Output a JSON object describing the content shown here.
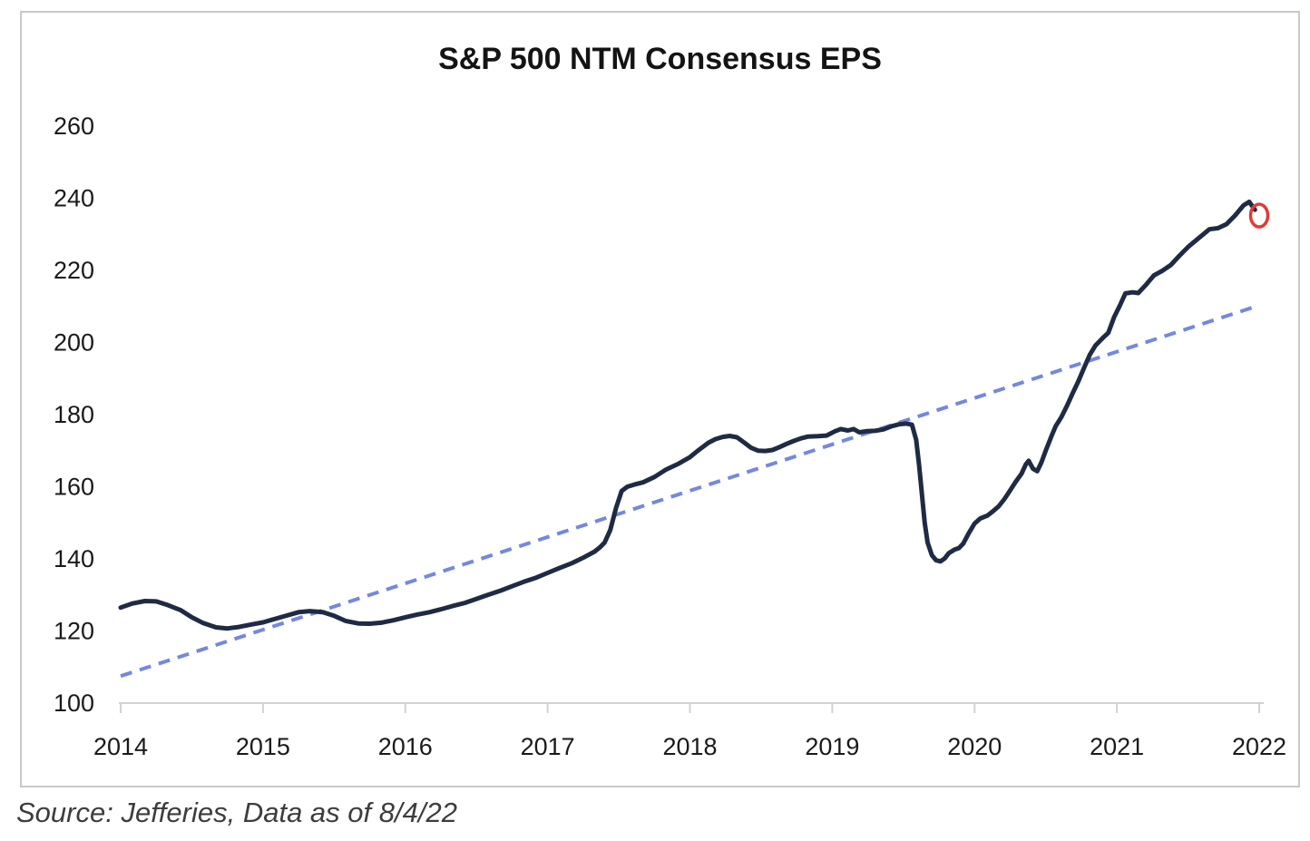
{
  "page": {
    "source_note": "Source: Jefferies, Data as of 8/4/22"
  },
  "colors": {
    "eps_line": "#1f2a44",
    "trend_line": "#7488dd",
    "annotation_circle": "#e03b33",
    "axis_line": "#d2d2d2",
    "tick_label": "#1a1a1a",
    "frame_border": "#c9c9c9",
    "source_text": "#3d3d3d",
    "title_text": "#141414"
  },
  "chart_data": {
    "type": "line",
    "title": "S&P 500 NTM Consensus EPS",
    "xlabel": "",
    "ylabel": "",
    "grid": false,
    "legend_position": "none",
    "xlim": [
      2014,
      2022
    ],
    "ylim": [
      100,
      260
    ],
    "x_ticks": [
      2014,
      2015,
      2016,
      2017,
      2018,
      2019,
      2020,
      2021,
      2022
    ],
    "y_ticks": [
      100,
      120,
      140,
      160,
      180,
      200,
      220,
      240,
      260
    ],
    "series": [
      {
        "name": "S&P 500 NTM consensus EPS",
        "style": "solid",
        "color_key": "eps_line",
        "points": [
          [
            2014.0,
            126.5
          ],
          [
            2014.08,
            127.6
          ],
          [
            2014.17,
            128.3
          ],
          [
            2014.25,
            128.2
          ],
          [
            2014.33,
            127.2
          ],
          [
            2014.42,
            125.8
          ],
          [
            2014.5,
            123.8
          ],
          [
            2014.58,
            122.2
          ],
          [
            2014.67,
            121.0
          ],
          [
            2014.75,
            120.7
          ],
          [
            2014.83,
            121.1
          ],
          [
            2014.92,
            121.8
          ],
          [
            2015.0,
            122.4
          ],
          [
            2015.08,
            123.3
          ],
          [
            2015.17,
            124.3
          ],
          [
            2015.25,
            125.2
          ],
          [
            2015.33,
            125.5
          ],
          [
            2015.42,
            125.2
          ],
          [
            2015.5,
            124.2
          ],
          [
            2015.58,
            122.8
          ],
          [
            2015.67,
            122.1
          ],
          [
            2015.75,
            122.0
          ],
          [
            2015.83,
            122.3
          ],
          [
            2015.92,
            123.0
          ],
          [
            2016.0,
            123.8
          ],
          [
            2016.08,
            124.5
          ],
          [
            2016.17,
            125.2
          ],
          [
            2016.25,
            126.0
          ],
          [
            2016.33,
            126.9
          ],
          [
            2016.42,
            127.8
          ],
          [
            2016.5,
            128.9
          ],
          [
            2016.58,
            130.0
          ],
          [
            2016.67,
            131.2
          ],
          [
            2016.75,
            132.4
          ],
          [
            2016.83,
            133.6
          ],
          [
            2016.92,
            134.8
          ],
          [
            2017.0,
            136.1
          ],
          [
            2017.08,
            137.4
          ],
          [
            2017.17,
            138.8
          ],
          [
            2017.25,
            140.3
          ],
          [
            2017.33,
            142.0
          ],
          [
            2017.37,
            143.3
          ],
          [
            2017.4,
            144.5
          ],
          [
            2017.44,
            148.0
          ],
          [
            2017.48,
            154.0
          ],
          [
            2017.52,
            158.8
          ],
          [
            2017.56,
            160.0
          ],
          [
            2017.61,
            160.6
          ],
          [
            2017.67,
            161.2
          ],
          [
            2017.75,
            162.7
          ],
          [
            2017.83,
            164.7
          ],
          [
            2017.92,
            166.4
          ],
          [
            2018.0,
            168.2
          ],
          [
            2018.05,
            169.8
          ],
          [
            2018.09,
            171.0
          ],
          [
            2018.13,
            172.2
          ],
          [
            2018.18,
            173.2
          ],
          [
            2018.23,
            173.8
          ],
          [
            2018.28,
            174.1
          ],
          [
            2018.33,
            173.7
          ],
          [
            2018.38,
            172.3
          ],
          [
            2018.43,
            170.8
          ],
          [
            2018.48,
            170.0
          ],
          [
            2018.53,
            169.9
          ],
          [
            2018.58,
            170.2
          ],
          [
            2018.63,
            171.0
          ],
          [
            2018.68,
            171.9
          ],
          [
            2018.73,
            172.7
          ],
          [
            2018.78,
            173.4
          ],
          [
            2018.83,
            173.9
          ],
          [
            2018.9,
            174.0
          ],
          [
            2018.96,
            174.2
          ],
          [
            2019.02,
            175.4
          ],
          [
            2019.06,
            176.0
          ],
          [
            2019.11,
            175.6
          ],
          [
            2019.15,
            176.0
          ],
          [
            2019.19,
            175.1
          ],
          [
            2019.24,
            175.4
          ],
          [
            2019.3,
            175.5
          ],
          [
            2019.36,
            175.9
          ],
          [
            2019.42,
            176.8
          ],
          [
            2019.47,
            177.3
          ],
          [
            2019.52,
            177.5
          ],
          [
            2019.56,
            177.2
          ],
          [
            2019.59,
            173.0
          ],
          [
            2019.61,
            166.0
          ],
          [
            2019.63,
            158.0
          ],
          [
            2019.65,
            150.0
          ],
          [
            2019.67,
            144.5
          ],
          [
            2019.7,
            141.0
          ],
          [
            2019.73,
            139.6
          ],
          [
            2019.76,
            139.3
          ],
          [
            2019.79,
            140.1
          ],
          [
            2019.82,
            141.6
          ],
          [
            2019.86,
            142.6
          ],
          [
            2019.89,
            143.0
          ],
          [
            2019.92,
            144.2
          ],
          [
            2019.96,
            147.2
          ],
          [
            2020.0,
            149.8
          ],
          [
            2020.04,
            151.2
          ],
          [
            2020.09,
            152.0
          ],
          [
            2020.13,
            153.2
          ],
          [
            2020.17,
            154.6
          ],
          [
            2020.21,
            156.6
          ],
          [
            2020.25,
            159.0
          ],
          [
            2020.29,
            161.4
          ],
          [
            2020.33,
            163.6
          ],
          [
            2020.36,
            166.2
          ],
          [
            2020.38,
            167.2
          ],
          [
            2020.41,
            165.0
          ],
          [
            2020.44,
            164.3
          ],
          [
            2020.47,
            166.8
          ],
          [
            2020.5,
            170.0
          ],
          [
            2020.54,
            174.0
          ],
          [
            2020.57,
            176.8
          ],
          [
            2020.61,
            179.3
          ],
          [
            2020.65,
            182.5
          ],
          [
            2020.69,
            186.0
          ],
          [
            2020.73,
            189.3
          ],
          [
            2020.77,
            193.0
          ],
          [
            2020.81,
            196.6
          ],
          [
            2020.85,
            199.2
          ],
          [
            2020.9,
            201.2
          ],
          [
            2020.94,
            202.7
          ],
          [
            2020.98,
            207.0
          ],
          [
            2021.02,
            210.2
          ],
          [
            2021.06,
            213.6
          ],
          [
            2021.11,
            213.9
          ],
          [
            2021.15,
            213.7
          ],
          [
            2021.2,
            215.8
          ],
          [
            2021.26,
            218.6
          ],
          [
            2021.32,
            219.9
          ],
          [
            2021.38,
            221.5
          ],
          [
            2021.44,
            224.1
          ],
          [
            2021.5,
            226.5
          ],
          [
            2021.58,
            229.1
          ],
          [
            2021.65,
            231.4
          ],
          [
            2021.71,
            231.7
          ],
          [
            2021.77,
            232.8
          ],
          [
            2021.83,
            235.2
          ],
          [
            2021.89,
            238.0
          ],
          [
            2021.93,
            239.0
          ],
          [
            2021.97,
            236.8
          ]
        ]
      },
      {
        "name": "Linear trend",
        "style": "dashed",
        "color_key": "trend_line",
        "points": [
          [
            2014.0,
            107.5
          ],
          [
            2022.0,
            210.3
          ]
        ]
      }
    ],
    "annotations": [
      {
        "type": "ellipse",
        "x": 2022.0,
        "y": 235.2,
        "color_key": "annotation_circle"
      }
    ]
  }
}
